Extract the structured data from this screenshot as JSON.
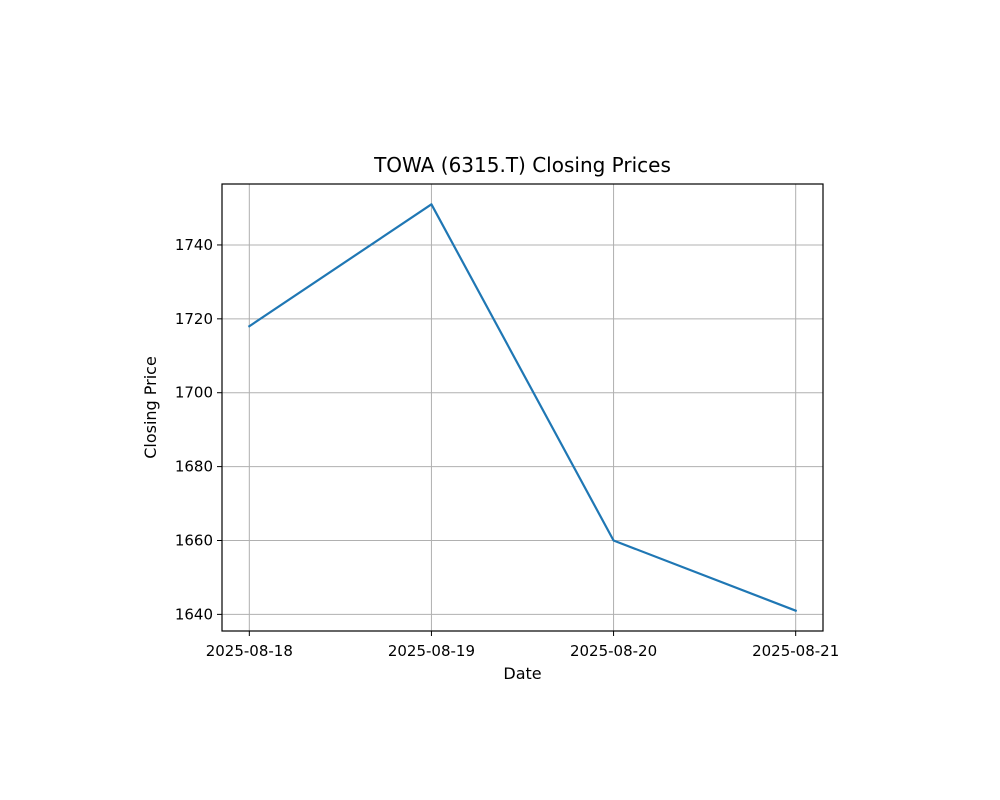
{
  "chart_data": {
    "type": "line",
    "title": "TOWA (6315.T) Closing Prices",
    "xlabel": "Date",
    "ylabel": "Closing Price",
    "x": [
      "2025-08-18",
      "2025-08-19",
      "2025-08-20",
      "2025-08-21"
    ],
    "series": [
      {
        "values": [
          1718,
          1751,
          1660,
          1641
        ],
        "color": "#1f77b4"
      }
    ],
    "xlim": [
      "2025-08-17T20:24",
      "2025-08-21T03:36"
    ],
    "ylim": [
      1635.5,
      1756.5
    ],
    "yticks": [
      1640,
      1660,
      1680,
      1700,
      1720,
      1740
    ],
    "ytick_labels": [
      "1640",
      "1660",
      "1680",
      "1700",
      "1720",
      "1740"
    ],
    "xtick_labels": [
      "2025-08-18",
      "2025-08-19",
      "2025-08-20",
      "2025-08-21"
    ],
    "grid": true,
    "colors": {
      "grid": "#b0b0b0",
      "line": "#1f77b4"
    }
  }
}
